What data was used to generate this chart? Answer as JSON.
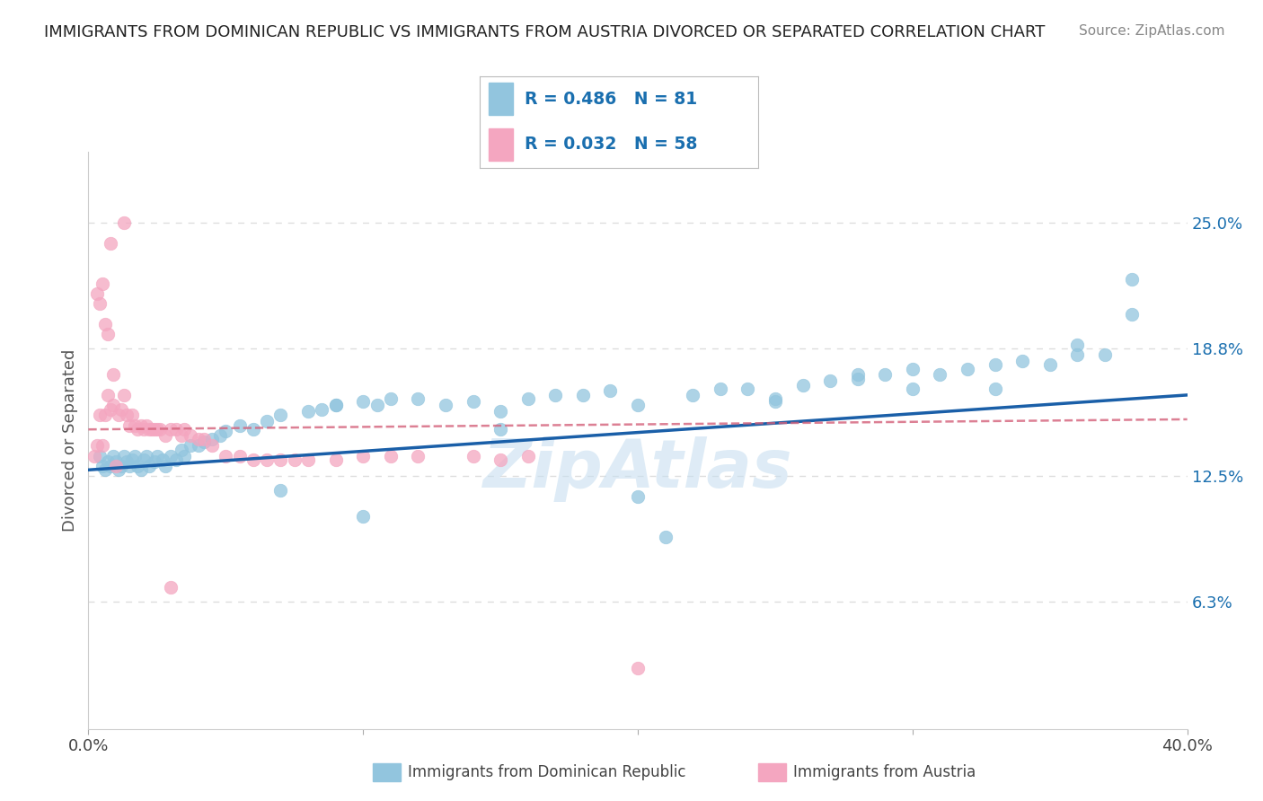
{
  "title": "IMMIGRANTS FROM DOMINICAN REPUBLIC VS IMMIGRANTS FROM AUSTRIA DIVORCED OR SEPARATED CORRELATION CHART",
  "source": "Source: ZipAtlas.com",
  "ylabel": "Divorced or Separated",
  "watermark": "ZipAtlas",
  "xlim": [
    0.0,
    0.4
  ],
  "ylim": [
    0.0,
    0.285
  ],
  "yticks_right": [
    0.063,
    0.125,
    0.188,
    0.25
  ],
  "yticklabels_right": [
    "6.3%",
    "12.5%",
    "18.8%",
    "25.0%"
  ],
  "series1_label": "Immigrants from Dominican Republic",
  "series1_color": "#92c5de",
  "series1_line_color": "#1a5fa8",
  "series1_R": "0.486",
  "series1_N": "81",
  "series2_label": "Immigrants from Austria",
  "series2_color": "#f4a6c0",
  "series2_line_color": "#d4607a",
  "series2_R": "0.032",
  "series2_N": "58",
  "legend_R_color": "#1a6faf",
  "title_color": "#333333",
  "gridline_color": "#dddddd",
  "series1_x": [
    0.004,
    0.005,
    0.006,
    0.007,
    0.008,
    0.009,
    0.01,
    0.011,
    0.012,
    0.013,
    0.014,
    0.015,
    0.016,
    0.017,
    0.018,
    0.019,
    0.02,
    0.021,
    0.022,
    0.024,
    0.025,
    0.027,
    0.028,
    0.03,
    0.032,
    0.034,
    0.035,
    0.037,
    0.04,
    0.042,
    0.045,
    0.048,
    0.05,
    0.055,
    0.06,
    0.065,
    0.07,
    0.08,
    0.085,
    0.09,
    0.1,
    0.105,
    0.11,
    0.12,
    0.13,
    0.14,
    0.15,
    0.16,
    0.17,
    0.18,
    0.19,
    0.2,
    0.21,
    0.22,
    0.23,
    0.24,
    0.25,
    0.26,
    0.27,
    0.28,
    0.29,
    0.3,
    0.31,
    0.32,
    0.33,
    0.34,
    0.35,
    0.36,
    0.37,
    0.38,
    0.15,
    0.1,
    0.3,
    0.25,
    0.28,
    0.33,
    0.38,
    0.36,
    0.2,
    0.09,
    0.07
  ],
  "series1_y": [
    0.135,
    0.13,
    0.128,
    0.132,
    0.13,
    0.135,
    0.132,
    0.128,
    0.13,
    0.135,
    0.132,
    0.13,
    0.133,
    0.135,
    0.13,
    0.128,
    0.133,
    0.135,
    0.13,
    0.132,
    0.135,
    0.133,
    0.13,
    0.135,
    0.133,
    0.138,
    0.135,
    0.14,
    0.14,
    0.142,
    0.143,
    0.145,
    0.147,
    0.15,
    0.148,
    0.152,
    0.155,
    0.157,
    0.158,
    0.16,
    0.162,
    0.16,
    0.163,
    0.163,
    0.16,
    0.162,
    0.157,
    0.163,
    0.165,
    0.165,
    0.167,
    0.115,
    0.095,
    0.165,
    0.168,
    0.168,
    0.163,
    0.17,
    0.172,
    0.173,
    0.175,
    0.178,
    0.175,
    0.178,
    0.18,
    0.182,
    0.18,
    0.19,
    0.185,
    0.205,
    0.148,
    0.105,
    0.168,
    0.162,
    0.175,
    0.168,
    0.222,
    0.185,
    0.16,
    0.16,
    0.118
  ],
  "series2_x": [
    0.002,
    0.003,
    0.004,
    0.005,
    0.006,
    0.007,
    0.008,
    0.009,
    0.01,
    0.011,
    0.012,
    0.013,
    0.014,
    0.015,
    0.016,
    0.017,
    0.018,
    0.019,
    0.02,
    0.021,
    0.022,
    0.023,
    0.024,
    0.025,
    0.026,
    0.028,
    0.03,
    0.032,
    0.034,
    0.035,
    0.037,
    0.04,
    0.042,
    0.045,
    0.05,
    0.055,
    0.06,
    0.065,
    0.07,
    0.075,
    0.08,
    0.09,
    0.1,
    0.11,
    0.12,
    0.14,
    0.15,
    0.16,
    0.013,
    0.008,
    0.005,
    0.003,
    0.004,
    0.006,
    0.007,
    0.009,
    0.2,
    0.03
  ],
  "series2_y": [
    0.135,
    0.14,
    0.155,
    0.14,
    0.155,
    0.165,
    0.158,
    0.16,
    0.13,
    0.155,
    0.158,
    0.165,
    0.155,
    0.15,
    0.155,
    0.15,
    0.148,
    0.15,
    0.148,
    0.15,
    0.148,
    0.148,
    0.148,
    0.148,
    0.148,
    0.145,
    0.148,
    0.148,
    0.145,
    0.148,
    0.145,
    0.143,
    0.143,
    0.14,
    0.135,
    0.135,
    0.133,
    0.133,
    0.133,
    0.133,
    0.133,
    0.133,
    0.135,
    0.135,
    0.135,
    0.135,
    0.133,
    0.135,
    0.25,
    0.24,
    0.22,
    0.215,
    0.21,
    0.2,
    0.195,
    0.175,
    0.03,
    0.07
  ]
}
